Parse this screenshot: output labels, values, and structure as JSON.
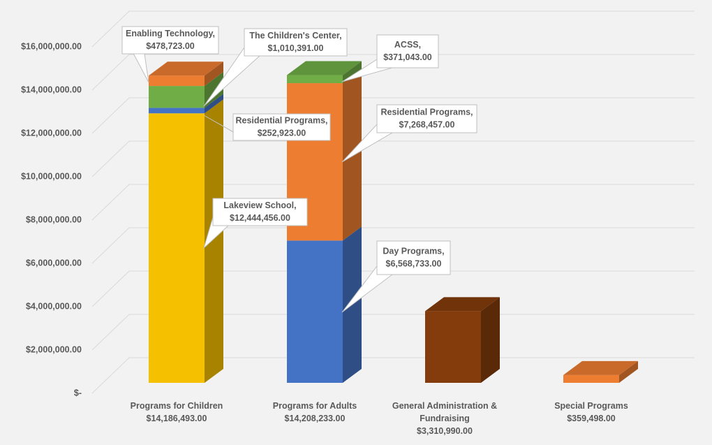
{
  "chart_data": {
    "type": "bar3d_stacked",
    "categories": [
      "Programs for Children",
      "Programs for Adults",
      "General Administration & Fundraising",
      "Special Programs"
    ],
    "category_totals": [
      "$14,186,493.00",
      "$14,208,233.00",
      "$3,310,990.00",
      "$359,498.00"
    ],
    "series": [
      {
        "name": "Lakeview School,",
        "color": "#f5c000",
        "values": [
          12444456,
          null,
          null,
          null
        ],
        "value_labels": [
          "$12,444,456.00",
          null,
          null,
          null
        ]
      },
      {
        "name": "Residential Programs,",
        "color": "#4472c4",
        "values": [
          252923,
          null,
          null,
          null
        ],
        "value_labels": [
          "$252,923.00",
          null,
          null,
          null
        ]
      },
      {
        "name": "The Children's Center,",
        "color": "#70ad47",
        "values": [
          1010391,
          null,
          null,
          null
        ],
        "value_labels": [
          "$1,010,391.00",
          null,
          null,
          null
        ]
      },
      {
        "name": "Enabling Technology,",
        "color": "#ed7d31",
        "values": [
          478723,
          null,
          null,
          null
        ],
        "value_labels": [
          "$478,723.00",
          null,
          null,
          null
        ]
      },
      {
        "name": "Day Programs,",
        "color": "#4472c4",
        "values": [
          null,
          6568733,
          null,
          null
        ],
        "value_labels": [
          null,
          "$6,568,733.00",
          null,
          null
        ]
      },
      {
        "name": "Residential Programs,",
        "color": "#ed7d31",
        "values": [
          null,
          7268457,
          null,
          null
        ],
        "value_labels": [
          null,
          "$7,268,457.00",
          null,
          null
        ]
      },
      {
        "name": "ACSS,",
        "color": "#70ad47",
        "values": [
          null,
          371043,
          null,
          null
        ],
        "value_labels": [
          null,
          "$371,043.00",
          null,
          null
        ]
      },
      {
        "color": "#843c0c",
        "values": [
          null,
          null,
          3310990,
          null
        ]
      },
      {
        "color": "#ed7d31",
        "values": [
          null,
          null,
          null,
          359498
        ]
      }
    ],
    "ylim": [
      0,
      16000000
    ],
    "yticks": [
      {
        "value": 0,
        "label": "$-"
      },
      {
        "value": 2000000,
        "label": "$2,000,000.00"
      },
      {
        "value": 4000000,
        "label": "$4,000,000.00"
      },
      {
        "value": 6000000,
        "label": "$6,000,000.00"
      },
      {
        "value": 8000000,
        "label": "$8,000,000.00"
      },
      {
        "value": 10000000,
        "label": "$10,000,000.00"
      },
      {
        "value": 12000000,
        "label": "$12,000,000.00"
      },
      {
        "value": 14000000,
        "label": "$14,000,000.00"
      },
      {
        "value": 16000000,
        "label": "$16,000,000.00"
      }
    ],
    "grid": true
  }
}
